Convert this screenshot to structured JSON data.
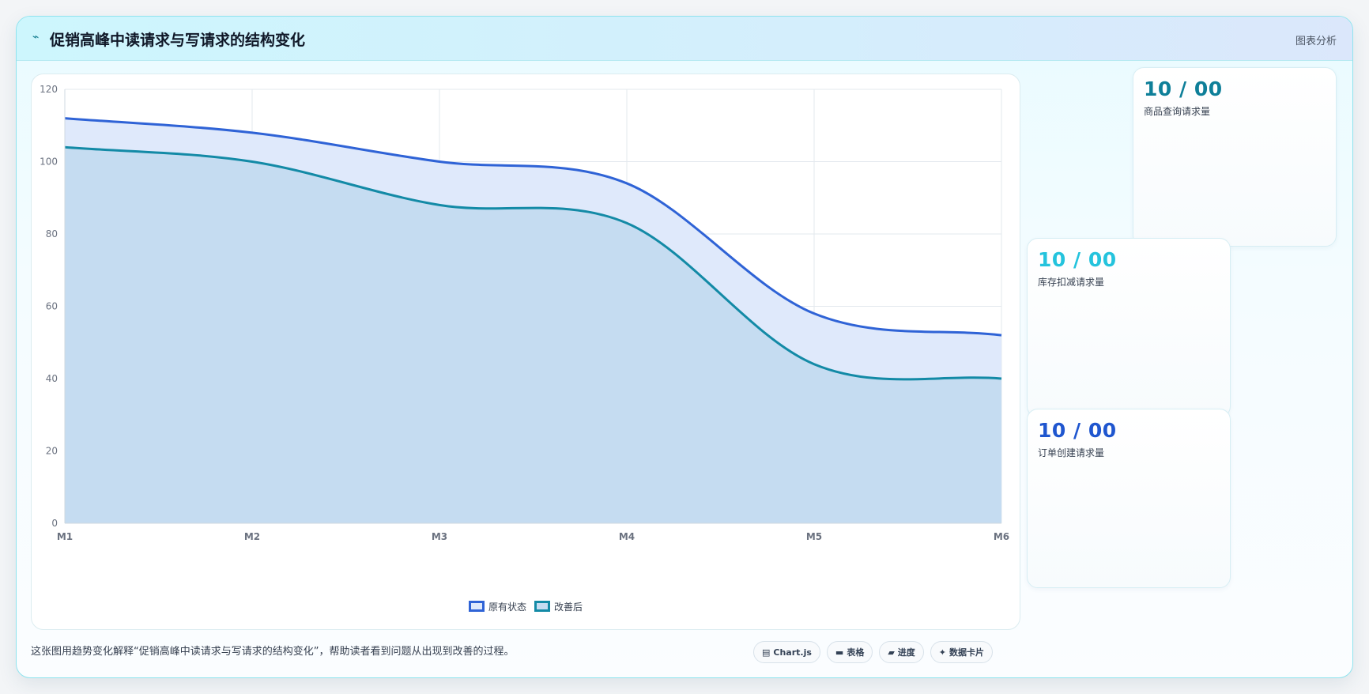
{
  "header": {
    "icon": "trend-icon",
    "title": "促销高峰中读请求与写请求的结构变化",
    "action_label": "图表分析"
  },
  "chart_data": {
    "type": "area",
    "title": "",
    "xlabel": "",
    "ylabel": "",
    "categories": [
      "M1",
      "M2",
      "M3",
      "M4",
      "M5",
      "M6"
    ],
    "ylim": [
      0,
      120
    ],
    "yticks": [
      0,
      20,
      40,
      60,
      80,
      100,
      120
    ],
    "grid": true,
    "legend_position": "bottom",
    "series": [
      {
        "name": "原有状态",
        "values": [
          112,
          108,
          100,
          94,
          58,
          52
        ],
        "color": "#2f63d6",
        "fill": "#dfe9fb"
      },
      {
        "name": "改善后",
        "values": [
          104,
          100,
          88,
          83,
          44,
          40
        ],
        "color": "#138aa6",
        "fill": "#c5dcf1"
      }
    ]
  },
  "stats": [
    {
      "value": "10 / 00",
      "label": "商品查询请求量",
      "color": "#0e7f99"
    },
    {
      "value": "10 / 00",
      "label": "库存扣减请求量",
      "color": "#24c3dd"
    },
    {
      "value": "10 / 00",
      "label": "订单创建请求量",
      "color": "#1f56cf"
    }
  ],
  "footer": {
    "description": "这张图用趋势变化解释“促销高峰中读请求与写请求的结构变化”，帮助读者看到问题从出现到改善的过程。",
    "tags": [
      {
        "icon": "chart-icon",
        "glyph": "▤",
        "label": "Chart.js"
      },
      {
        "icon": "table-icon",
        "glyph": "▬",
        "label": "表格"
      },
      {
        "icon": "progress-icon",
        "glyph": "▰",
        "label": "进度"
      },
      {
        "icon": "card-icon",
        "glyph": "✦",
        "label": "数据卡片"
      }
    ]
  }
}
